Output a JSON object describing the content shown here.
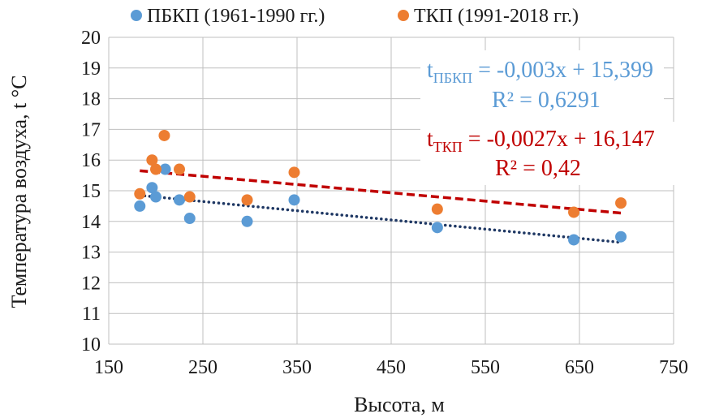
{
  "chart_data": {
    "type": "scatter",
    "xlabel": "Высота, м",
    "ylabel": "Температура воздуха, t °С",
    "xlim": [
      150,
      750
    ],
    "ylim": [
      10,
      20
    ],
    "x_ticks": [
      "150",
      "250",
      "350",
      "450",
      "550",
      "650",
      "750"
    ],
    "y_ticks": [
      "10",
      "11",
      "12",
      "13",
      "14",
      "15",
      "16",
      "17",
      "18",
      "19",
      "20"
    ],
    "grid": true,
    "legend_position": "top",
    "series": [
      {
        "name": "ПБКП (1961-1990 гг.)",
        "color": "#5b9bd5",
        "points": [
          {
            "x": 183,
            "y": 14.5
          },
          {
            "x": 196,
            "y": 15.1
          },
          {
            "x": 200,
            "y": 14.8
          },
          {
            "x": 210,
            "y": 15.7
          },
          {
            "x": 225,
            "y": 14.7
          },
          {
            "x": 236,
            "y": 14.1
          },
          {
            "x": 297,
            "y": 14.0
          },
          {
            "x": 347,
            "y": 14.7
          },
          {
            "x": 499,
            "y": 13.8
          },
          {
            "x": 644,
            "y": 13.4
          },
          {
            "x": 694,
            "y": 13.5
          }
        ],
        "trendline": {
          "style": "dotted",
          "color": "#1f3864",
          "slope": -0.003,
          "intercept": 15.399,
          "x_range": [
            183,
            694
          ],
          "equation_main": "t",
          "equation_sub": "ПБКП",
          "equation_rest": " = -0,003x + 15,399",
          "r2": "R² = 0,6291",
          "label_color": "#5b9bd5"
        }
      },
      {
        "name": "ТКП (1991-2018 гг.)",
        "color": "#ed7d31",
        "points": [
          {
            "x": 183,
            "y": 14.9
          },
          {
            "x": 196,
            "y": 16.0
          },
          {
            "x": 200,
            "y": 15.7
          },
          {
            "x": 209,
            "y": 16.8
          },
          {
            "x": 225,
            "y": 15.7
          },
          {
            "x": 236,
            "y": 14.8
          },
          {
            "x": 297,
            "y": 14.7
          },
          {
            "x": 347,
            "y": 15.6
          },
          {
            "x": 499,
            "y": 14.4
          },
          {
            "x": 644,
            "y": 14.3
          },
          {
            "x": 694,
            "y": 14.6
          }
        ],
        "trendline": {
          "style": "dashed",
          "color": "#c00000",
          "slope": -0.0027,
          "intercept": 16.147,
          "x_range": [
            183,
            694
          ],
          "equation_main": "t",
          "equation_sub": "ТКП",
          "equation_rest": " = -0,0027x + 16,147",
          "r2": "R² = 0,42",
          "label_color": "#c00000"
        }
      }
    ]
  }
}
